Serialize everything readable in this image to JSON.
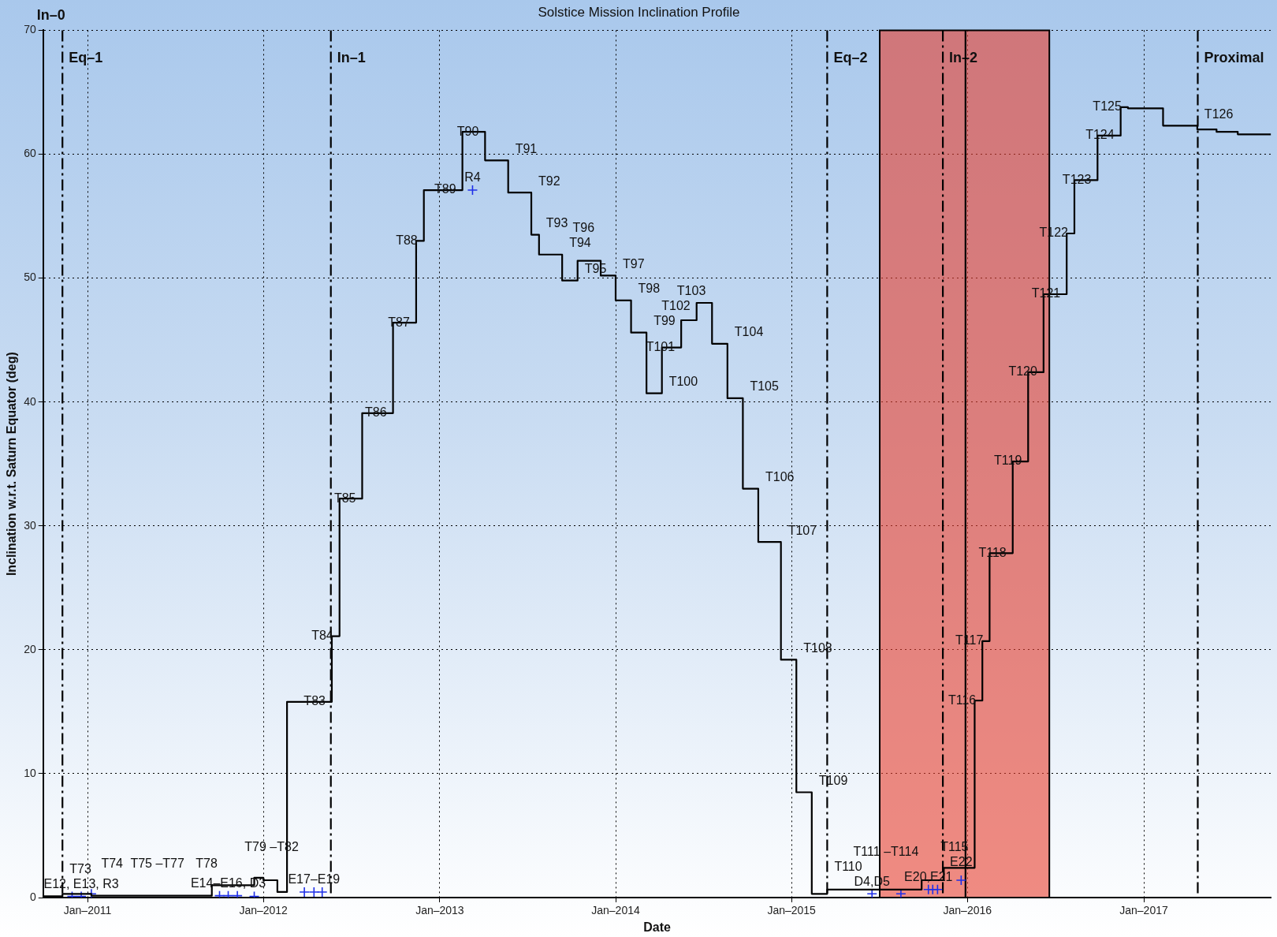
{
  "chart_data": {
    "type": "step",
    "title": "Solstice Mission Inclination Profile",
    "xlabel": "Date",
    "ylabel": "Inclination w.r.t. Saturn Equator (deg)",
    "xlim": [
      "2010-10-01",
      "2017-09-22"
    ],
    "xticks": [
      {
        "value": "2011-01-01",
        "label": "Jan–2011"
      },
      {
        "value": "2012-01-01",
        "label": "Jan–2012"
      },
      {
        "value": "2013-01-01",
        "label": "Jan–2013"
      },
      {
        "value": "2014-01-01",
        "label": "Jan–2014"
      },
      {
        "value": "2015-01-01",
        "label": "Jan–2015"
      },
      {
        "value": "2016-01-01",
        "label": "Jan–2016"
      },
      {
        "value": "2017-01-01",
        "label": "Jan–2017"
      }
    ],
    "ylim": [
      0,
      70
    ],
    "yticks": [
      0,
      10,
      20,
      30,
      40,
      50,
      60,
      70
    ],
    "grid": true,
    "legend": false,
    "series": [
      {
        "color": "#000000",
        "marker": "none",
        "x": [
          "2010-10-01",
          "2010-11-10",
          "2011-01-09",
          "2011-09-16",
          "2011-12-13",
          "2012-01-01",
          "2012-01-30",
          "2012-02-19",
          "2012-05-22",
          "2012-06-07",
          "2012-07-24",
          "2012-09-26",
          "2012-11-13",
          "2012-11-29",
          "2013-02-17",
          "2013-04-05",
          "2013-05-23",
          "2013-07-10",
          "2013-07-26",
          "2013-09-12",
          "2013-10-14",
          "2013-12-01",
          "2014-01-01",
          "2014-02-02",
          "2014-03-06",
          "2014-04-07",
          "2014-05-17",
          "2014-06-18",
          "2014-07-20",
          "2014-08-21",
          "2014-09-22",
          "2014-10-24",
          "2014-12-10",
          "2015-01-11",
          "2015-02-12",
          "2015-03-16",
          "2015-09-28",
          "2015-11-13",
          "2016-01-16",
          "2016-02-01",
          "2016-02-16",
          "2016-04-04",
          "2016-05-06",
          "2016-06-07",
          "2016-07-25",
          "2016-08-10",
          "2016-09-27",
          "2016-11-14",
          "2016-11-29",
          "2017-02-10",
          "2017-04-22",
          "2017-06-01",
          "2017-07-15",
          "2017-09-22"
        ],
        "values": [
          3.0,
          0.1,
          0.3,
          0.15,
          1.0,
          1.6,
          1.4,
          0.45,
          15.8,
          21.1,
          32.2,
          39.1,
          46.4,
          53.0,
          57.1,
          61.8,
          59.5,
          56.9,
          53.5,
          51.9,
          49.8,
          51.4,
          50.2,
          48.2,
          45.6,
          40.7,
          44.4,
          46.6,
          48.0,
          44.7,
          40.3,
          33.0,
          28.7,
          19.2,
          8.5,
          0.3,
          0.65,
          1.4,
          2.4,
          15.9,
          20.7,
          27.8,
          35.2,
          42.4,
          48.7,
          53.6,
          57.9,
          61.5,
          63.8,
          63.7,
          62.3,
          62.0,
          61.8,
          61.6
        ]
      },
      {
        "type": "scatter",
        "color": "#1f2fe8",
        "marker": "cross",
        "x": [
          "2010-11-30",
          "2010-12-19",
          "2011-01-09",
          "2011-10-02",
          "2011-10-20",
          "2011-11-08",
          "2011-12-13",
          "2012-03-26",
          "2012-04-15",
          "2012-05-02",
          "2013-03-10",
          "2015-06-17",
          "2015-08-16",
          "2015-10-12",
          "2015-10-21",
          "2015-10-31",
          "2015-12-19"
        ],
        "values": [
          0.1,
          0.1,
          0.3,
          0.15,
          0.15,
          0.15,
          0.1,
          0.45,
          0.45,
          0.45,
          57.1,
          0.3,
          0.3,
          0.65,
          0.65,
          0.65,
          1.4
        ]
      }
    ],
    "ref_lines": [
      {
        "axis": "x",
        "value": "2010-11-10",
        "line_style": "dashed",
        "color": "#000000",
        "label": "Eq–1"
      },
      {
        "axis": "x",
        "value": "2012-05-20",
        "line_style": "dashed",
        "color": "#000000",
        "label": "In–1"
      },
      {
        "axis": "x",
        "value": "2015-03-16",
        "line_style": "dashed",
        "color": "#000000",
        "label": "Eq–2"
      },
      {
        "axis": "x",
        "value": "2015-11-11",
        "line_style": "dashed",
        "color": "#000000",
        "label": "In–2"
      },
      {
        "axis": "x",
        "value": "2017-04-23",
        "line_style": "dashed",
        "color": "#000000",
        "label": "Proximal"
      },
      {
        "axis": "x",
        "value": "2015-12-28",
        "line_style": "solid",
        "color": "#000000"
      }
    ],
    "bands": [
      {
        "axis": "x",
        "from": "2015-07-03",
        "to": "2016-06-19",
        "color": "#e8402e"
      }
    ],
    "annotations": [
      "In–0",
      {
        "text": "E12, E13, R3",
        "x": "2010-12-19",
        "y": 0.1
      },
      {
        "text": "D4,D5",
        "x": "2015-06-17",
        "y": 0.3
      },
      {
        "text": "T73",
        "x": "2010-11-10",
        "y": 0.1
      },
      {
        "text": "T74",
        "x": "2011-02-21",
        "y": 0.3
      },
      {
        "text": "T75 –T77",
        "x": "2011-05-26",
        "y": 0.3
      },
      {
        "text": "T78",
        "x": "2011-09-05",
        "y": 0.3
      },
      {
        "text": "T79 –T82",
        "x": "2012-01-18",
        "y": 1.6
      },
      {
        "text": "E14–E16, D3",
        "x": "2011-10-20",
        "y": 0.15
      },
      {
        "text": "E17–E19",
        "x": "2012-04-15",
        "y": 0.45
      },
      {
        "text": "T83",
        "x": "2012-05-22",
        "y": 15.8
      },
      {
        "text": "T84",
        "x": "2012-06-07",
        "y": 21.1
      },
      {
        "text": "T85",
        "x": "2012-07-24",
        "y": 32.2
      },
      {
        "text": "T86",
        "x": "2012-09-26",
        "y": 39.1
      },
      {
        "text": "T87",
        "x": "2012-11-13",
        "y": 46.4
      },
      {
        "text": "T88",
        "x": "2012-11-29",
        "y": 53.0
      },
      {
        "text": "T89",
        "x": "2013-02-17",
        "y": 57.1
      },
      {
        "text": "R4",
        "x": "2013-03-10",
        "y": 57.1
      },
      {
        "text": "T90",
        "x": "2013-04-05",
        "y": 61.8
      },
      {
        "text": "T91",
        "x": "2013-05-23",
        "y": 59.5
      },
      {
        "text": "T92",
        "x": "2013-07-10",
        "y": 56.9
      },
      {
        "text": "T93",
        "x": "2013-07-26",
        "y": 53.5
      },
      {
        "text": "T94",
        "x": "2013-09-12",
        "y": 51.9
      },
      {
        "text": "T95",
        "x": "2013-10-14",
        "y": 49.8
      },
      {
        "text": "T96",
        "x": "2013-12-01",
        "y": 51.4
      },
      {
        "text": "T97",
        "x": "2014-01-01",
        "y": 50.2
      },
      {
        "text": "T98",
        "x": "2014-02-02",
        "y": 48.2
      },
      {
        "text": "T99",
        "x": "2014-03-06",
        "y": 45.6
      },
      {
        "text": "T100",
        "x": "2014-04-07",
        "y": 40.7
      },
      {
        "text": "T101",
        "x": "2014-05-17",
        "y": 44.4
      },
      {
        "text": "T102",
        "x": "2014-06-18",
        "y": 46.6
      },
      {
        "text": "T103",
        "x": "2014-07-20",
        "y": 48.0
      },
      {
        "text": "T104",
        "x": "2014-08-21",
        "y": 44.7
      },
      {
        "text": "T105",
        "x": "2014-09-22",
        "y": 40.3
      },
      {
        "text": "T106",
        "x": "2014-10-24",
        "y": 33.0
      },
      {
        "text": "T107",
        "x": "2014-12-10",
        "y": 28.7
      },
      {
        "text": "T108",
        "x": "2015-01-11",
        "y": 19.2
      },
      {
        "text": "T109",
        "x": "2015-02-12",
        "y": 8.5
      },
      {
        "text": "T110",
        "x": "2015-03-16",
        "y": 0.3
      },
      {
        "text": "T111 –T114",
        "x": "2015-07-16",
        "y": 0.3
      },
      {
        "text": "E20,E21",
        "x": "2015-10-12",
        "y": 0.65
      },
      {
        "text": "E22",
        "x": "2015-12-19",
        "y": 1.4
      },
      {
        "text": "T115",
        "x": "2016-01-16",
        "y": 2.4
      },
      {
        "text": "T116",
        "x": "2016-02-01",
        "y": 15.9
      },
      {
        "text": "T117",
        "x": "2016-02-16",
        "y": 20.7
      },
      {
        "text": "T118",
        "x": "2016-04-04",
        "y": 27.8
      },
      {
        "text": "T119",
        "x": "2016-05-06",
        "y": 35.2
      },
      {
        "text": "T120",
        "x": "2016-06-07",
        "y": 42.4
      },
      {
        "text": "T121",
        "x": "2016-07-25",
        "y": 48.7
      },
      {
        "text": "T122",
        "x": "2016-08-10",
        "y": 53.6
      },
      {
        "text": "T123",
        "x": "2016-09-27",
        "y": 57.9
      },
      {
        "text": "T124",
        "x": "2016-11-14",
        "y": 61.5
      },
      {
        "text": "T125",
        "x": "2016-11-29",
        "y": 63.8
      },
      {
        "text": "T126",
        "x": "2017-04-22",
        "y": 62.3
      }
    ]
  }
}
